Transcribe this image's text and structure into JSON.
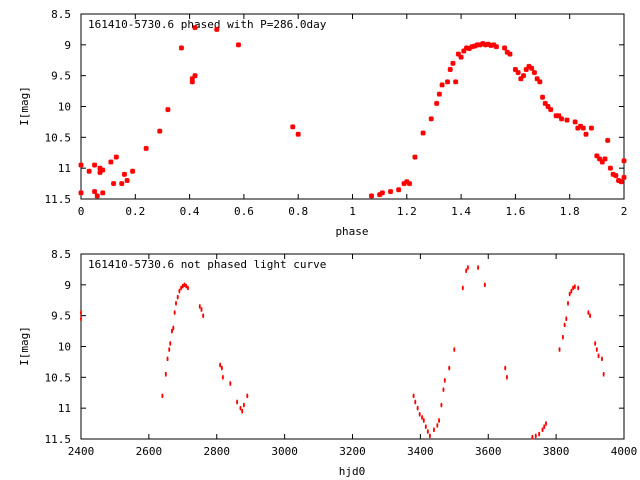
{
  "chart_data": [
    {
      "type": "scatter",
      "title": "161410-5730.6 phased with P=286.0day",
      "xlabel": "phase",
      "ylabel": "I[mag]",
      "xlim": [
        0,
        2
      ],
      "ylim": [
        11.5,
        8.5
      ],
      "y_inverted": true,
      "grid": false,
      "legend": "none",
      "x_ticks": [
        "0",
        "0.2",
        "0.4",
        "0.6",
        "0.8",
        "1",
        "1.2",
        "1.4",
        "1.6",
        "1.8",
        "2"
      ],
      "y_ticks": [
        "8.5",
        "9",
        "9.5",
        "10",
        "10.5",
        "11",
        "11.5"
      ],
      "marker_color": "#ff0000",
      "series": [
        {
          "points": [
            [
              0.0,
              10.95
            ],
            [
              0.0,
              11.4
            ],
            [
              0.03,
              11.05
            ],
            [
              0.05,
              11.38
            ],
            [
              0.05,
              10.95
            ],
            [
              0.06,
              11.45
            ],
            [
              0.07,
              11.0
            ],
            [
              0.07,
              11.07
            ],
            [
              0.08,
              11.03
            ],
            [
              0.08,
              11.4
            ],
            [
              0.11,
              10.9
            ],
            [
              0.12,
              11.25
            ],
            [
              0.13,
              10.82
            ],
            [
              0.15,
              11.25
            ],
            [
              0.16,
              11.1
            ],
            [
              0.17,
              11.2
            ],
            [
              0.19,
              11.05
            ],
            [
              0.24,
              10.68
            ],
            [
              0.29,
              10.4
            ],
            [
              0.32,
              10.05
            ],
            [
              0.37,
              9.05
            ],
            [
              0.41,
              9.6
            ],
            [
              0.41,
              9.55
            ],
            [
              0.42,
              9.5
            ],
            [
              0.42,
              8.72
            ],
            [
              0.5,
              8.75
            ],
            [
              0.58,
              9.0
            ],
            [
              0.78,
              10.33
            ],
            [
              0.8,
              10.45
            ],
            [
              1.07,
              11.45
            ],
            [
              1.1,
              11.43
            ],
            [
              1.11,
              11.4
            ],
            [
              1.14,
              11.38
            ],
            [
              1.17,
              11.35
            ],
            [
              1.19,
              11.25
            ],
            [
              1.2,
              11.22
            ],
            [
              1.21,
              11.25
            ],
            [
              1.23,
              10.82
            ],
            [
              1.26,
              10.43
            ],
            [
              1.29,
              10.2
            ],
            [
              1.31,
              9.95
            ],
            [
              1.32,
              9.8
            ],
            [
              1.33,
              9.65
            ],
            [
              1.35,
              9.6
            ],
            [
              1.36,
              9.4
            ],
            [
              1.37,
              9.3
            ],
            [
              1.38,
              9.6
            ],
            [
              1.39,
              9.15
            ],
            [
              1.4,
              9.2
            ],
            [
              1.41,
              9.1
            ],
            [
              1.42,
              9.05
            ],
            [
              1.43,
              9.06
            ],
            [
              1.44,
              9.03
            ],
            [
              1.45,
              9.02
            ],
            [
              1.46,
              9.0
            ],
            [
              1.47,
              9.0
            ],
            [
              1.48,
              8.98
            ],
            [
              1.49,
              9.0
            ],
            [
              1.5,
              8.99
            ],
            [
              1.51,
              9.01
            ],
            [
              1.52,
              9.0
            ],
            [
              1.53,
              9.03
            ],
            [
              1.56,
              9.05
            ],
            [
              1.57,
              9.12
            ],
            [
              1.58,
              9.15
            ],
            [
              1.6,
              9.4
            ],
            [
              1.62,
              9.55
            ],
            [
              1.64,
              9.4
            ],
            [
              1.65,
              9.35
            ],
            [
              1.66,
              9.38
            ],
            [
              1.67,
              9.45
            ],
            [
              1.68,
              9.55
            ],
            [
              1.69,
              9.6
            ],
            [
              1.7,
              9.85
            ],
            [
              1.72,
              10.0
            ],
            [
              1.73,
              10.05
            ],
            [
              1.75,
              10.15
            ],
            [
              1.77,
              10.2
            ],
            [
              1.79,
              10.22
            ],
            [
              1.82,
              10.25
            ],
            [
              1.83,
              10.35
            ],
            [
              1.85,
              10.35
            ],
            [
              1.86,
              10.45
            ],
            [
              1.88,
              10.35
            ],
            [
              1.9,
              10.8
            ],
            [
              1.92,
              10.9
            ],
            [
              1.93,
              10.85
            ],
            [
              1.95,
              11.0
            ],
            [
              1.96,
              11.1
            ],
            [
              1.97,
              11.12
            ],
            [
              1.98,
              11.2
            ],
            [
              1.99,
              11.22
            ],
            [
              2.0,
              10.88
            ],
            [
              2.0,
              11.15
            ],
            [
              1.94,
              10.55
            ],
            [
              1.91,
              10.85
            ],
            [
              1.84,
              10.32
            ],
            [
              1.76,
              10.15
            ],
            [
              1.71,
              9.95
            ],
            [
              1.63,
              9.5
            ],
            [
              1.61,
              9.45
            ]
          ]
        }
      ]
    },
    {
      "type": "scatter",
      "title": "161410-5730.6 not phased light curve",
      "xlabel": "hjd0",
      "ylabel": "I[mag]",
      "xlim": [
        2400,
        4000
      ],
      "ylim": [
        11.5,
        8.5
      ],
      "y_inverted": true,
      "grid": false,
      "legend": "none",
      "x_ticks": [
        "2400",
        "2600",
        "2800",
        "3000",
        "3200",
        "3400",
        "3600",
        "3800",
        "4000"
      ],
      "y_ticks": [
        "8.5",
        "9",
        "9.5",
        "10",
        "10.5",
        "11",
        "11.5"
      ],
      "marker_color": "#ff0000",
      "series": [
        {
          "points": [
            [
              2400,
              9.55
            ],
            [
              2400,
              9.45
            ],
            [
              2640,
              10.8
            ],
            [
              2650,
              10.45
            ],
            [
              2655,
              10.2
            ],
            [
              2660,
              10.05
            ],
            [
              2663,
              9.95
            ],
            [
              2668,
              9.75
            ],
            [
              2672,
              9.7
            ],
            [
              2676,
              9.45
            ],
            [
              2680,
              9.3
            ],
            [
              2685,
              9.2
            ],
            [
              2690,
              9.1
            ],
            [
              2695,
              9.05
            ],
            [
              2700,
              9.02
            ],
            [
              2705,
              9.0
            ],
            [
              2710,
              9.02
            ],
            [
              2715,
              9.05
            ],
            [
              2750,
              9.35
            ],
            [
              2755,
              9.4
            ],
            [
              2760,
              9.5
            ],
            [
              2810,
              10.3
            ],
            [
              2815,
              10.35
            ],
            [
              2818,
              10.5
            ],
            [
              2840,
              10.6
            ],
            [
              2860,
              10.9
            ],
            [
              2870,
              11.0
            ],
            [
              2875,
              11.05
            ],
            [
              2880,
              10.95
            ],
            [
              2890,
              10.8
            ],
            [
              3380,
              10.8
            ],
            [
              3385,
              10.9
            ],
            [
              3392,
              11.0
            ],
            [
              3398,
              11.1
            ],
            [
              3405,
              11.15
            ],
            [
              3410,
              11.2
            ],
            [
              3416,
              11.3
            ],
            [
              3422,
              11.38
            ],
            [
              3428,
              11.45
            ],
            [
              3440,
              11.35
            ],
            [
              3450,
              11.28
            ],
            [
              3455,
              11.2
            ],
            [
              3462,
              10.95
            ],
            [
              3468,
              10.7
            ],
            [
              3472,
              10.55
            ],
            [
              3485,
              10.35
            ],
            [
              3500,
              10.05
            ],
            [
              3525,
              9.05
            ],
            [
              3535,
              8.77
            ],
            [
              3540,
              8.72
            ],
            [
              3570,
              8.72
            ],
            [
              3590,
              9.0
            ],
            [
              3650,
              10.35
            ],
            [
              3655,
              10.5
            ],
            [
              3730,
              11.47
            ],
            [
              3740,
              11.45
            ],
            [
              3750,
              11.42
            ],
            [
              3760,
              11.35
            ],
            [
              3765,
              11.3
            ],
            [
              3770,
              11.25
            ],
            [
              3810,
              10.05
            ],
            [
              3820,
              9.85
            ],
            [
              3825,
              9.65
            ],
            [
              3830,
              9.55
            ],
            [
              3835,
              9.3
            ],
            [
              3840,
              9.15
            ],
            [
              3845,
              9.1
            ],
            [
              3850,
              9.05
            ],
            [
              3855,
              9.03
            ],
            [
              3865,
              9.05
            ],
            [
              3895,
              9.45
            ],
            [
              3900,
              9.5
            ],
            [
              3915,
              9.95
            ],
            [
              3920,
              10.05
            ],
            [
              3925,
              10.15
            ],
            [
              3935,
              10.2
            ],
            [
              3940,
              10.45
            ]
          ]
        }
      ]
    }
  ]
}
